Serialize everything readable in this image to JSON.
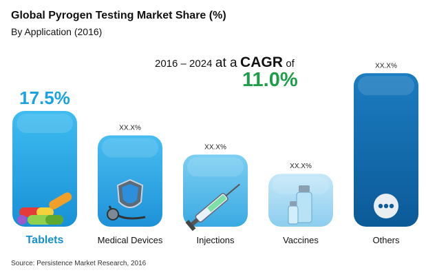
{
  "header": {
    "title": "Global Pyrogen Testing Market Share (%)",
    "subtitle": "By Application (2016)"
  },
  "cagr": {
    "period": "2016 – 2024",
    "at_a": "at a",
    "label": "CAGR",
    "of": "of",
    "value": "11.0%"
  },
  "footer": {
    "source": "Source: Persistence Market Research, 2016"
  },
  "colors": {
    "tablets": "#1ba3e0",
    "medical_devices": "#2aa4e0",
    "injections": "#52b8e8",
    "vaccines": "#9fd5f1",
    "others": "#0f67a8",
    "highlight_text": "#1ba3e0",
    "cagr_value": "#1f9e4a"
  },
  "chart_data": {
    "type": "bar",
    "categories": [
      "Tablets",
      "Medical Devices",
      "Injections",
      "Vaccines",
      "Others"
    ],
    "value_labels": [
      "17.5%",
      "XX.X%",
      "XX.X%",
      "XX.X%",
      "XX.X%"
    ],
    "values": [
      17.5,
      13.8,
      10.9,
      8.0,
      23.2
    ],
    "icons": [
      "pills-icon",
      "shield-stethoscope-icon",
      "syringe-icon",
      "vials-icon",
      "ellipsis-icon"
    ],
    "ylim": [
      0,
      25
    ],
    "grid": false,
    "legend": "none"
  }
}
